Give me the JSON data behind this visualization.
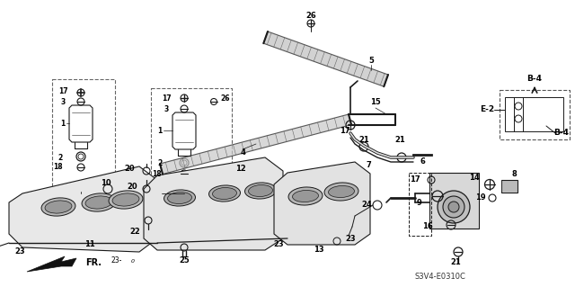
{
  "bg_color": "#ffffff",
  "line_color": "#1a1a1a",
  "text_color": "#000000",
  "diagram_ref": "S3V4-E0310C",
  "figsize": [
    6.4,
    3.19
  ],
  "dpi": 100
}
